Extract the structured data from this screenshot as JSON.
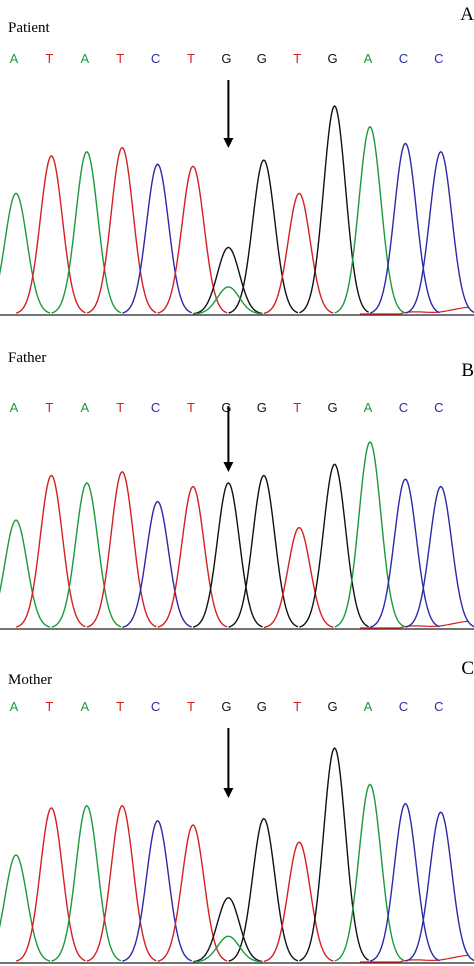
{
  "colors": {
    "A": "#1a9a3c",
    "T": "#d42020",
    "C": "#2a2aa8",
    "G": "#111111",
    "baseline_red": "#d42020"
  },
  "sequence": [
    "A",
    "T",
    "A",
    "T",
    "C",
    "T",
    "G",
    "G",
    "T",
    "G",
    "A",
    "C",
    "C"
  ],
  "panels": [
    {
      "id": "patient",
      "title": "Patient",
      "letter": "A",
      "heights": [
        0.58,
        0.76,
        0.78,
        0.8,
        0.72,
        0.71,
        0.32,
        0.74,
        0.58,
        1.0,
        0.9,
        0.82,
        0.78
      ],
      "secondary": {
        "index": 6,
        "base": "A",
        "height": 0.13
      },
      "trough": 0.55
    },
    {
      "id": "father",
      "title": "Father",
      "letter": "B",
      "heights": [
        0.58,
        0.82,
        0.78,
        0.84,
        0.68,
        0.76,
        0.78,
        0.82,
        0.54,
        0.88,
        1.0,
        0.8,
        0.76
      ],
      "secondary": null,
      "trough": 0.55
    },
    {
      "id": "mother",
      "title": "Mother",
      "letter": "C",
      "heights": [
        0.5,
        0.72,
        0.73,
        0.73,
        0.66,
        0.64,
        0.3,
        0.67,
        0.56,
        1.0,
        0.83,
        0.74,
        0.7
      ],
      "secondary": {
        "index": 6,
        "base": "A",
        "height": 0.12
      },
      "trough": 0.55
    }
  ]
}
